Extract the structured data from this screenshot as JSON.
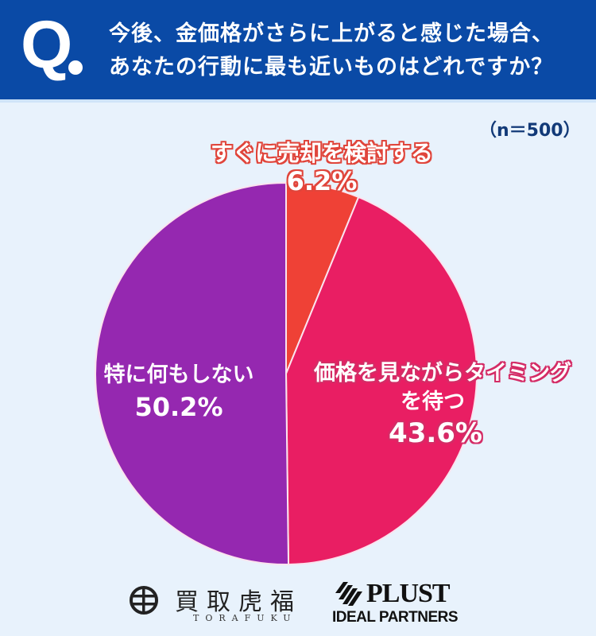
{
  "header": {
    "q_label": "Q",
    "question_line1": "今後、金価格がさらに上がると感じた場合、",
    "question_line2": "あなたの行動に最も近いものはどれですか？"
  },
  "sample_size": "（n＝500）",
  "colors": {
    "header_bg": "#0a4aa6",
    "page_bg": "#e8f2fc",
    "slice_sell": "#ef4136",
    "slice_wait": "#e91e63",
    "slice_nothing": "#9528b0"
  },
  "chart_data": {
    "type": "pie",
    "title": "今後、金価格がさらに上がると感じた場合、あなたの行動に最も近いものはどれですか？",
    "n": 500,
    "start_angle": "12 o'clock, clockwise",
    "categories": [
      "すぐに売却を検討する",
      "価格を見ながらタイミングを待つ",
      "特に何もしない"
    ],
    "values": [
      6.2,
      43.6,
      50.2
    ],
    "unit": "%",
    "colors": [
      "#ef4136",
      "#e91e63",
      "#9528b0"
    ]
  },
  "labels": {
    "sell": {
      "text": "すぐに売却を検討する",
      "pct": "6.2%"
    },
    "wait": {
      "line1": "価格を見ながらタイミング",
      "line2": "を待つ",
      "pct": "43.6%"
    },
    "nothing": {
      "text": "特に何もしない",
      "pct": "50.2%"
    }
  },
  "footer": {
    "torafuku_kanji": "買取虎福",
    "torafuku_roman": "TORAFUKU",
    "plust_name": "PLUST",
    "plust_sub": "IDEAL PARTNERS"
  }
}
